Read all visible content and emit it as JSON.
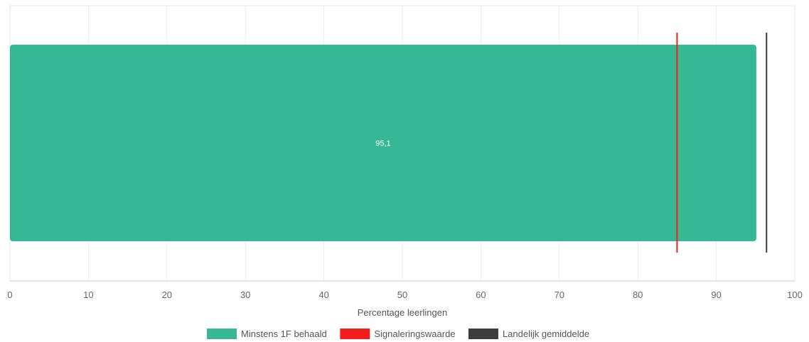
{
  "chart_data": {
    "type": "bar",
    "orientation": "horizontal",
    "xlabel": "Percentage leerlingen",
    "xlim": [
      0,
      100
    ],
    "xticks": [
      0,
      10,
      20,
      30,
      40,
      50,
      60,
      70,
      80,
      90,
      100
    ],
    "grid": true,
    "legend_position": "bottom",
    "series": [
      {
        "name": "Minstens 1F behaald",
        "values": [
          95.1
        ],
        "value_labels": [
          "95,1"
        ],
        "color": "#35b893"
      }
    ],
    "reference_lines": [
      {
        "name": "Signaleringswaarde",
        "value": 85,
        "color": "#f41d1d"
      },
      {
        "name": "Landelijk gemiddelde",
        "value": 96.4,
        "color": "#3c3c3c"
      }
    ]
  }
}
